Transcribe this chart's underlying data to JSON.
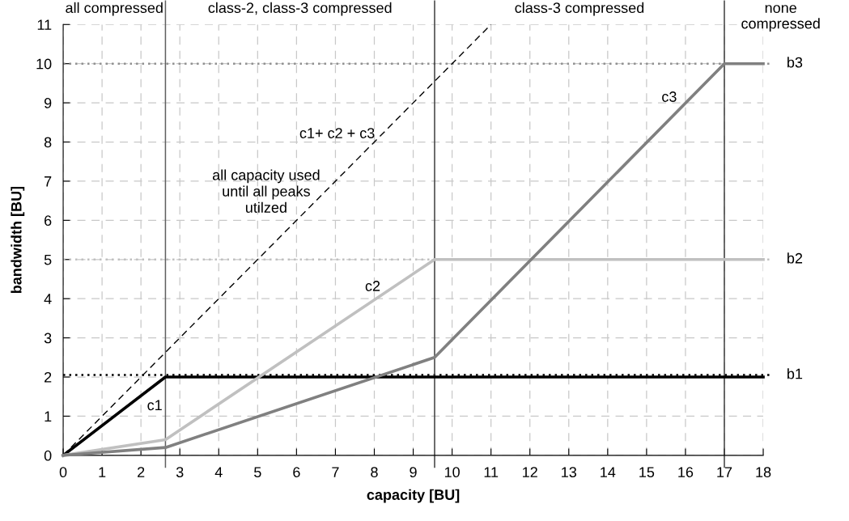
{
  "chart_data": {
    "type": "line",
    "xlabel": "capacity [BU]",
    "ylabel": "bandwidth [BU]",
    "xlim": [
      0,
      18
    ],
    "ylim": [
      0,
      11
    ],
    "xticks": [
      0,
      1,
      2,
      3,
      4,
      5,
      6,
      7,
      8,
      9,
      10,
      11,
      12,
      13,
      14,
      15,
      16,
      17,
      18
    ],
    "yticks": [
      0,
      1,
      2,
      3,
      4,
      5,
      6,
      7,
      8,
      9,
      10,
      11
    ],
    "grid": true,
    "line_style": "solid",
    "marker": "none",
    "series": [
      {
        "name": "c1+ c2 + c3",
        "color": "#000000",
        "line_style": "dashed",
        "x": [
          0,
          11
        ],
        "values": [
          0,
          11
        ]
      },
      {
        "name": "c1",
        "color": "#000000",
        "x": [
          0,
          2.63,
          18
        ],
        "values": [
          0,
          2,
          2
        ]
      },
      {
        "name": "c2",
        "color": "#c0c0c0",
        "x": [
          0,
          2.63,
          9.55,
          18
        ],
        "values": [
          0,
          0.4,
          5,
          5
        ]
      },
      {
        "name": "c3",
        "color": "#808080",
        "x": [
          0,
          2.63,
          9.55,
          17,
          18
        ],
        "values": [
          0,
          0.2,
          2.5,
          10,
          10
        ]
      }
    ],
    "ref_lines": [
      {
        "axis": "y",
        "value": 2.05,
        "label": "b1",
        "color": "#000000",
        "line_style": "dotted"
      },
      {
        "axis": "y",
        "value": 5,
        "label": "b2",
        "color": "#c0c0c0",
        "line_style": "dotted"
      },
      {
        "axis": "y",
        "value": 10,
        "label": "b3",
        "color": "#909090",
        "line_style": "dotted"
      },
      {
        "axis": "x",
        "value": 2.63,
        "color": "#606060",
        "line_style": "solid"
      },
      {
        "axis": "x",
        "value": 9.55,
        "color": "#404040",
        "line_style": "solid"
      },
      {
        "axis": "x",
        "value": 17,
        "color": "#404040",
        "line_style": "solid"
      }
    ],
    "annotations": [
      "all compressed",
      "class-2, class-3 compressed",
      "class-3 compressed",
      "none\ncompressed",
      "all capacity used\nuntil all peaks\nutilzed"
    ]
  }
}
